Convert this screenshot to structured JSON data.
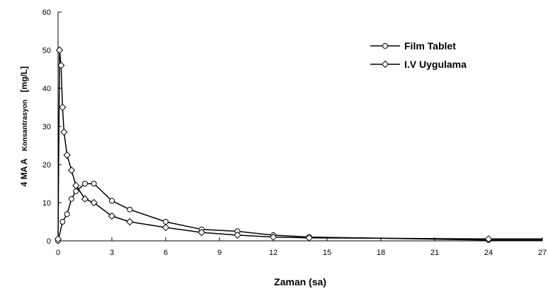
{
  "chart_data": {
    "type": "line",
    "xlabel": "Zaman (sa)",
    "ylabel": "4 MAA Konsantrasyon [mg/L]",
    "ylabel_parts": {
      "a": "4 MA A",
      "b": "Konsantrasyon",
      "c": "[mg/L]"
    },
    "xlim": [
      0,
      27
    ],
    "ylim": [
      0,
      60
    ],
    "x_ticks": [
      0,
      3,
      6,
      9,
      12,
      15,
      18,
      21,
      24,
      27
    ],
    "y_ticks": [
      0,
      10,
      20,
      30,
      40,
      50,
      60
    ],
    "grid": false,
    "legend_position": "top-right",
    "series": [
      {
        "name": "Film Tablet",
        "marker": "circle",
        "x": [
          0,
          0.25,
          0.5,
          0.75,
          1,
          1.5,
          2,
          3,
          4,
          6,
          8,
          10,
          12,
          14,
          24
        ],
        "y": [
          0,
          5,
          7,
          11,
          13,
          15,
          15,
          10.5,
          8.2,
          5,
          3,
          2.5,
          1.5,
          1,
          0.2
        ]
      },
      {
        "name": "I.V Uygulama",
        "marker": "diamond",
        "x": [
          0,
          0.083,
          0.167,
          0.25,
          0.33,
          0.5,
          0.75,
          1,
          1.5,
          2,
          3,
          4,
          6,
          8,
          10,
          12,
          14,
          24
        ],
        "y": [
          0.5,
          50,
          46,
          35,
          28.5,
          22.5,
          18.5,
          14.5,
          11,
          10,
          6.5,
          5,
          3.5,
          2.2,
          1.5,
          1,
          0.8,
          0.5
        ]
      }
    ]
  }
}
